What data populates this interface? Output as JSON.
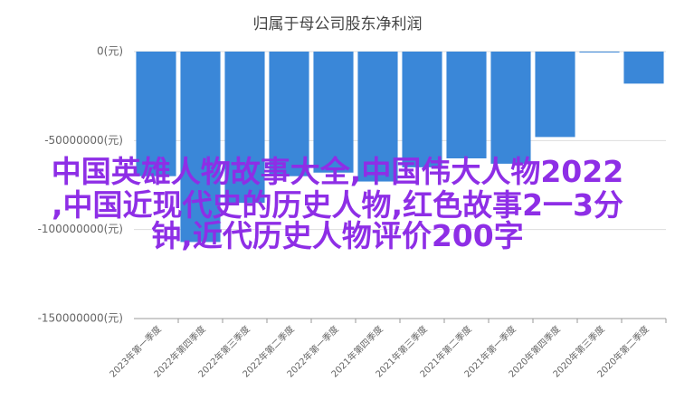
{
  "chart_data": {
    "type": "bar",
    "title": "归属于母公司股东净利润",
    "categories": [
      "2023年第一季度",
      "2022年第四季度",
      "2022年第三季度",
      "2022年第二季度",
      "2022年第一季度",
      "2021年第四季度",
      "2021年第三季度",
      "2021年第二季度",
      "2021年第一季度",
      "2020年第四季度",
      "2020年第三季度",
      "2020年第二季度"
    ],
    "values": [
      -70000000,
      -107000000,
      -85000000,
      -70000000,
      -68000000,
      -73000000,
      -65000000,
      -60000000,
      -63000000,
      -48000000,
      -500000,
      -18000000
    ],
    "color": "#3a87d8",
    "ylim": [
      -150000000,
      0
    ],
    "yticks": [
      {
        "value": 0,
        "label": "0(元)"
      },
      {
        "value": -50000000,
        "label": "-50000000(元)"
      },
      {
        "value": -100000000,
        "label": "-100000000(元)"
      },
      {
        "value": -150000000,
        "label": "-150000000(元)"
      }
    ],
    "grid": true
  },
  "overlay_text": [
    "中国英雄人物故事大全,中国伟大人物2022",
    ",中国近现代史的历史人物,红色故事2一3分",
    "钟,近代历史人物评价200字"
  ]
}
